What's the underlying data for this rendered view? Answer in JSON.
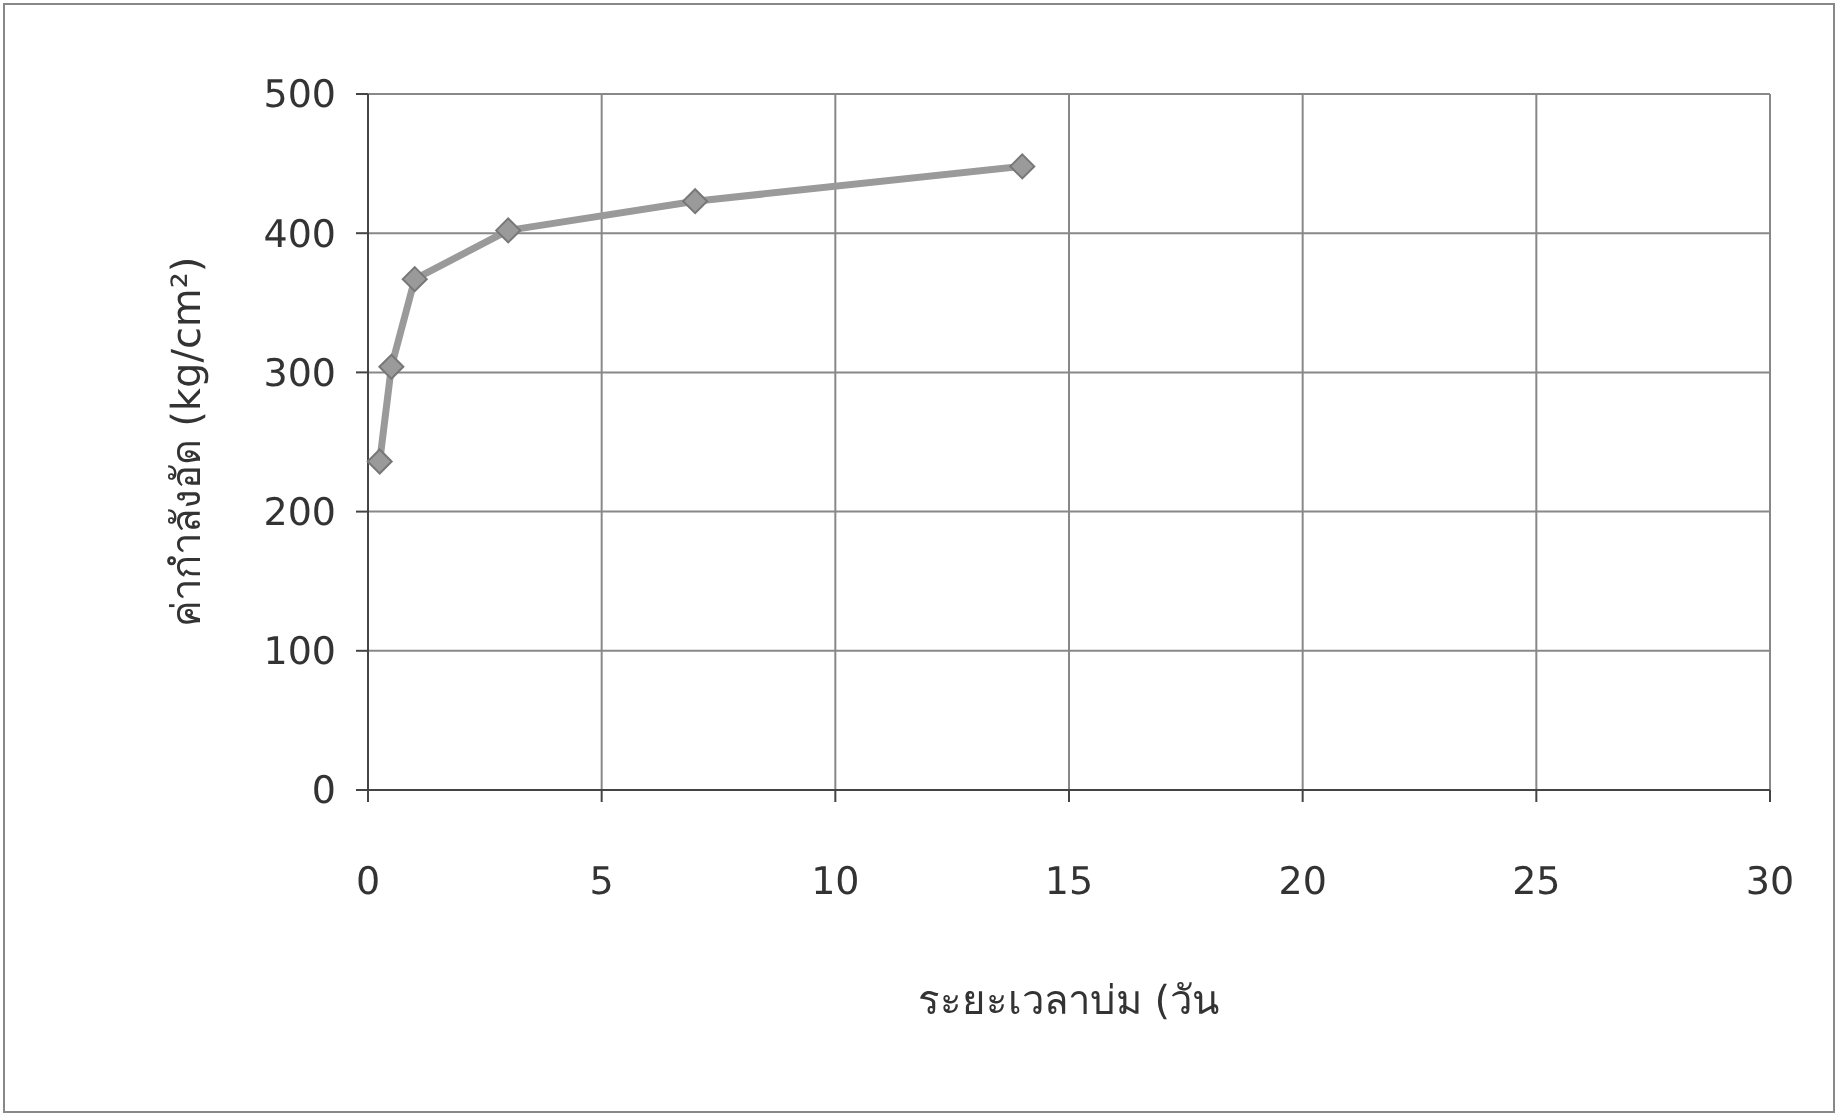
{
  "chart_data": {
    "type": "line",
    "xlabel": "ระยะเวลาบ่ม (วัน",
    "ylabel": "ค่ากำลังอัด (kg/cm²)",
    "x": [
      0.25,
      0.5,
      1,
      3,
      7,
      14
    ],
    "series": [
      {
        "color": "#9a9a9a",
        "values": [
          236,
          304,
          367,
          402,
          423,
          448
        ]
      }
    ],
    "xlim": [
      0,
      30
    ],
    "xticks": [
      0,
      5,
      10,
      15,
      20,
      25,
      30
    ],
    "ylim": [
      0,
      500
    ],
    "yticks": [
      0,
      100,
      200,
      300,
      400,
      500
    ],
    "grid": true,
    "marker": "diamond",
    "line_style": "solid"
  }
}
